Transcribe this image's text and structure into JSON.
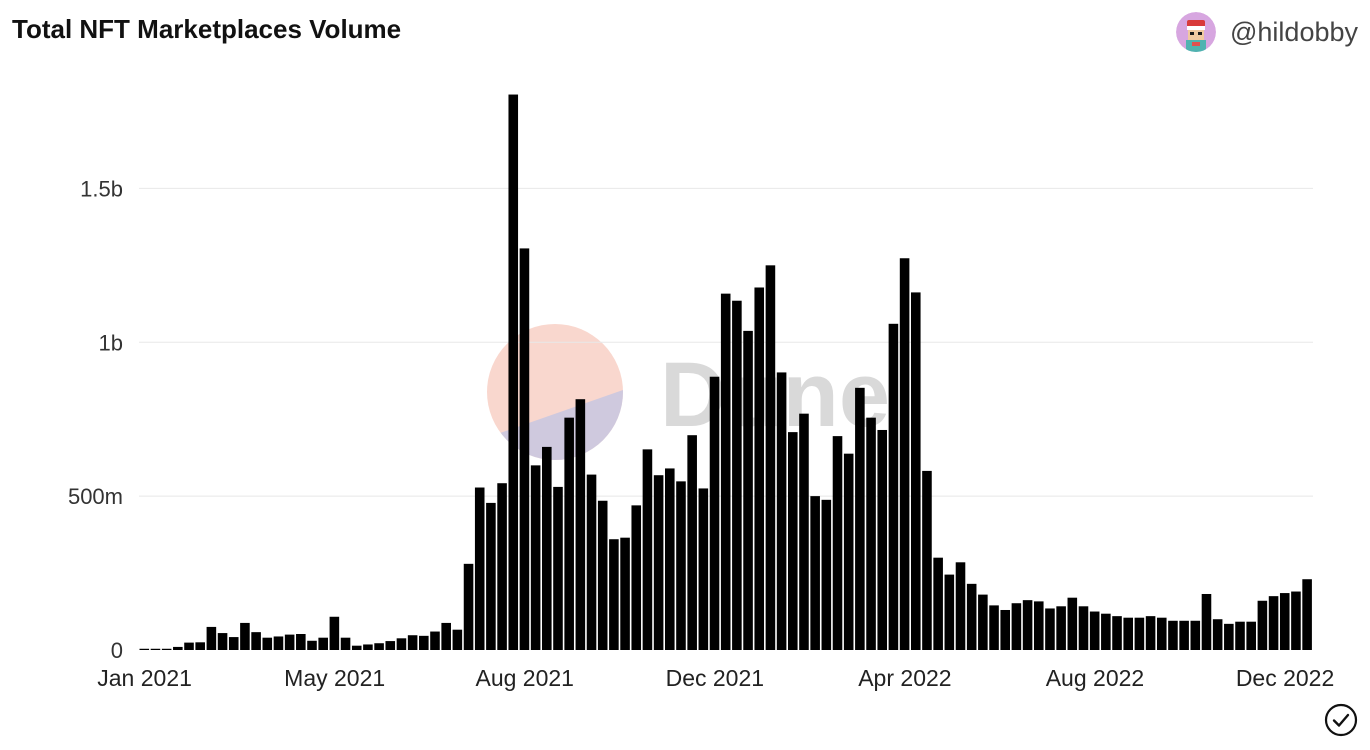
{
  "header": {
    "title": "Total NFT Marketplaces Volume",
    "author_handle": "@hildobby"
  },
  "watermark": {
    "text": "Dune"
  },
  "chart_data": {
    "type": "bar",
    "title": "Total NFT Marketplaces Volume",
    "xlabel": "",
    "ylabel": "",
    "ylim": [
      0,
      1810000000
    ],
    "grid": true,
    "legend": "none",
    "bar_color": "#000000",
    "y_ticks": [
      {
        "value": 0,
        "label": "0"
      },
      {
        "value": 500000000,
        "label": "500m"
      },
      {
        "value": 1000000000,
        "label": "1b"
      },
      {
        "value": 1500000000,
        "label": "1.5b"
      }
    ],
    "x_ticks": [
      {
        "index": 0,
        "label": "Jan 2021"
      },
      {
        "index": 17,
        "label": "May 2021"
      },
      {
        "index": 34,
        "label": "Aug 2021"
      },
      {
        "index": 51,
        "label": "Dec 2021"
      },
      {
        "index": 68,
        "label": "Apr 2022"
      },
      {
        "index": 85,
        "label": "Aug 2022"
      },
      {
        "index": 102,
        "label": "Dec 2022"
      }
    ],
    "values": [
      4000000,
      4000000,
      4000000,
      10000000,
      24000000,
      25000000,
      75000000,
      55000000,
      42000000,
      88000000,
      58000000,
      40000000,
      44000000,
      50000000,
      52000000,
      30000000,
      40000000,
      108000000,
      40000000,
      14000000,
      18000000,
      22000000,
      29000000,
      38000000,
      48000000,
      46000000,
      60000000,
      88000000,
      66000000,
      280000000,
      528000000,
      478000000,
      542000000,
      1805000000,
      1305000000,
      600000000,
      660000000,
      530000000,
      755000000,
      815000000,
      570000000,
      485000000,
      360000000,
      365000000,
      470000000,
      652000000,
      568000000,
      590000000,
      548000000,
      698000000,
      525000000,
      888000000,
      1158000000,
      1135000000,
      1037000000,
      1178000000,
      1250000000,
      902000000,
      708000000,
      768000000,
      500000000,
      488000000,
      695000000,
      638000000,
      852000000,
      755000000,
      715000000,
      1060000000,
      1273000000,
      1162000000,
      582000000,
      300000000,
      245000000,
      285000000,
      215000000,
      180000000,
      145000000,
      130000000,
      152000000,
      162000000,
      158000000,
      135000000,
      142000000,
      170000000,
      142000000,
      125000000,
      118000000,
      110000000,
      105000000,
      105000000,
      110000000,
      105000000,
      95000000,
      95000000,
      95000000,
      182000000,
      100000000,
      85000000,
      92000000,
      92000000,
      160000000,
      175000000,
      185000000,
      190000000,
      230000000
    ]
  }
}
